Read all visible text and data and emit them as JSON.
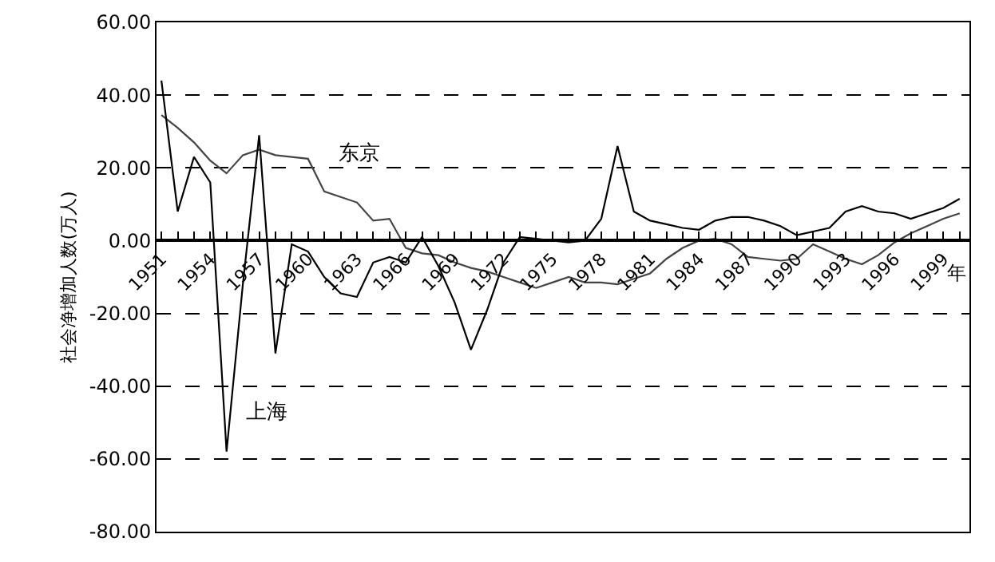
{
  "chart_data": {
    "type": "line",
    "ylabel": "社会净增加人数(万人)",
    "xlabel": "年",
    "x": [
      1951,
      1952,
      1953,
      1954,
      1955,
      1956,
      1957,
      1958,
      1959,
      1960,
      1961,
      1962,
      1963,
      1964,
      1965,
      1966,
      1967,
      1968,
      1969,
      1970,
      1971,
      1972,
      1973,
      1974,
      1975,
      1976,
      1977,
      1978,
      1979,
      1980,
      1981,
      1982,
      1983,
      1984,
      1985,
      1986,
      1987,
      1988,
      1989,
      1990,
      1991,
      1992,
      1993,
      1994,
      1995,
      1996,
      1997,
      1998,
      1999,
      2000
    ],
    "series": [
      {
        "name": "东京",
        "color": "#444444",
        "values": [
          34.5,
          31,
          27,
          22,
          18.5,
          23.5,
          25,
          23.5,
          23,
          22.5,
          13.5,
          12,
          10.5,
          5.5,
          6,
          -2,
          -3.5,
          -4,
          -6,
          -7.5,
          -8.5,
          -10,
          -11.5,
          -13,
          -11.5,
          -10,
          -11.5,
          -11.5,
          -12,
          -10.5,
          -9,
          -5,
          -2,
          0,
          0.5,
          -1,
          -4.5,
          -5,
          -5.5,
          -5,
          -1,
          -3,
          -5,
          -6.5,
          -4,
          -0.5,
          2,
          4,
          6,
          7.5
        ]
      },
      {
        "name": "上海",
        "color": "#000000",
        "values": [
          44,
          8,
          23,
          16,
          -58,
          -12,
          29,
          -31,
          -1,
          -3,
          -10,
          -14.5,
          -15.5,
          -6,
          -4.5,
          -6,
          1,
          -7,
          -17,
          -30,
          -19,
          -6,
          1,
          0.5,
          0,
          -0.5,
          0,
          6,
          26,
          8,
          5.5,
          4.5,
          3.5,
          3,
          5.5,
          6.5,
          6.5,
          5.5,
          4,
          1.5,
          2.5,
          3.5,
          8,
          9.5,
          8,
          7.5,
          6,
          7.5,
          9,
          11.5
        ]
      }
    ],
    "xlim": [
      1950.7,
      2000.6
    ],
    "xticks": [
      {
        "value": 1951,
        "label": "1951"
      },
      {
        "value": 1952,
        "label": null
      },
      {
        "value": 1953,
        "label": null
      },
      {
        "value": 1954,
        "label": "1954"
      },
      {
        "value": 1955,
        "label": null
      },
      {
        "value": 1956,
        "label": null
      },
      {
        "value": 1957,
        "label": "1957"
      },
      {
        "value": 1958,
        "label": null
      },
      {
        "value": 1959,
        "label": null
      },
      {
        "value": 1960,
        "label": "1960"
      },
      {
        "value": 1961,
        "label": null
      },
      {
        "value": 1962,
        "label": null
      },
      {
        "value": 1963,
        "label": "1963"
      },
      {
        "value": 1964,
        "label": null
      },
      {
        "value": 1965,
        "label": null
      },
      {
        "value": 1966,
        "label": "1966"
      },
      {
        "value": 1967,
        "label": null
      },
      {
        "value": 1968,
        "label": null
      },
      {
        "value": 1969,
        "label": "1969"
      },
      {
        "value": 1970,
        "label": null
      },
      {
        "value": 1971,
        "label": null
      },
      {
        "value": 1972,
        "label": "1972"
      },
      {
        "value": 1973,
        "label": null
      },
      {
        "value": 1974,
        "label": null
      },
      {
        "value": 1975,
        "label": "1975"
      },
      {
        "value": 1976,
        "label": null
      },
      {
        "value": 1977,
        "label": null
      },
      {
        "value": 1978,
        "label": "1978"
      },
      {
        "value": 1979,
        "label": null
      },
      {
        "value": 1980,
        "label": null
      },
      {
        "value": 1981,
        "label": "1981"
      },
      {
        "value": 1982,
        "label": null
      },
      {
        "value": 1983,
        "label": null
      },
      {
        "value": 1984,
        "label": "1984"
      },
      {
        "value": 1985,
        "label": null
      },
      {
        "value": 1986,
        "label": null
      },
      {
        "value": 1987,
        "label": "1987"
      },
      {
        "value": 1988,
        "label": null
      },
      {
        "value": 1989,
        "label": null
      },
      {
        "value": 1990,
        "label": "1990"
      },
      {
        "value": 1991,
        "label": null
      },
      {
        "value": 1992,
        "label": null
      },
      {
        "value": 1993,
        "label": "1993"
      },
      {
        "value": 1994,
        "label": null
      },
      {
        "value": 1995,
        "label": null
      },
      {
        "value": 1996,
        "label": "1996"
      },
      {
        "value": 1997,
        "label": null
      },
      {
        "value": 1998,
        "label": null
      },
      {
        "value": 1999,
        "label": "1999"
      },
      {
        "value": 2000,
        "label": null
      }
    ],
    "ylim": [
      -80,
      60
    ],
    "yticks": [
      {
        "value": -80,
        "label": "-80.00"
      },
      {
        "value": -60,
        "label": "-60.00"
      },
      {
        "value": -40,
        "label": "-40.00"
      },
      {
        "value": -20,
        "label": "-20.00"
      },
      {
        "value": 0,
        "label": "0.00"
      },
      {
        "value": 20,
        "label": "20.00"
      },
      {
        "value": 40,
        "label": "40.00"
      },
      {
        "value": 60,
        "label": "60.00"
      }
    ],
    "grid": "y",
    "legend": false,
    "marker": "none",
    "line_style": "solid"
  }
}
